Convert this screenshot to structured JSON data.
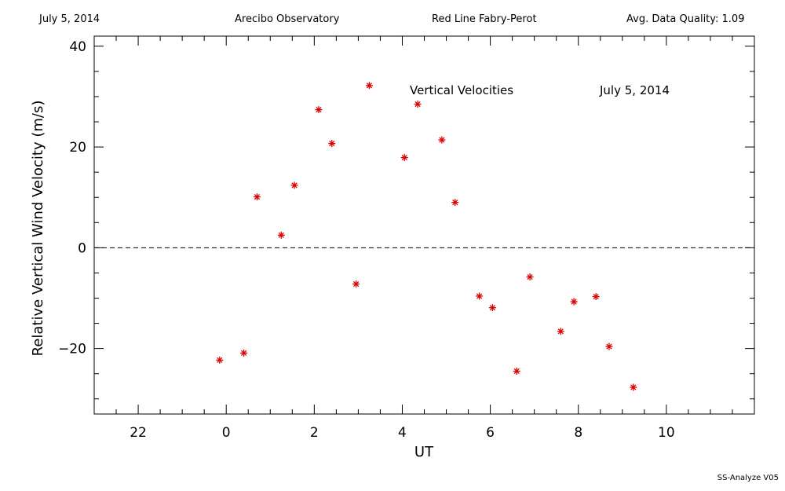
{
  "header": {
    "date": "July 5, 2014",
    "observatory": "Arecibo Observatory",
    "instrument": "Red Line Fabry-Perot",
    "quality": "Avg. Data Quality: 1.09"
  },
  "footer": {
    "version": "SS-Analyze V05"
  },
  "colors": {
    "points": "#dd0000",
    "axes": "#000000"
  },
  "chart_data": {
    "type": "scatter",
    "title": "Vertical Velocities",
    "subtitle": "July 5, 2014",
    "xlabel": "UT",
    "ylabel": "Relative Vertical Wind Velocity (m/s)",
    "xlim": [
      -3,
      12
    ],
    "ylim": [
      -33,
      42
    ],
    "x_ticks": [
      22,
      0,
      2,
      4,
      6,
      8,
      10
    ],
    "y_ticks": [
      40,
      20,
      0,
      -20
    ],
    "zero_line": "dashed",
    "grid": false,
    "marker": "asterisk",
    "series": [
      {
        "x": [
          -0.15,
          0.4,
          0.7,
          1.25,
          1.55,
          2.1,
          2.4,
          2.95,
          3.25,
          4.05,
          4.35,
          4.9,
          5.2,
          5.75,
          6.05,
          6.6,
          6.9,
          7.6,
          7.9,
          8.4,
          8.7,
          9.25
        ],
        "y": [
          -22.3,
          -20.9,
          10.1,
          2.5,
          12.4,
          27.4,
          20.7,
          -7.2,
          32.2,
          17.9,
          28.5,
          21.4,
          9.0,
          -9.6,
          -11.9,
          -24.5,
          -5.8,
          -16.6,
          -10.7,
          -9.7,
          -19.6,
          -27.7
        ]
      }
    ]
  }
}
